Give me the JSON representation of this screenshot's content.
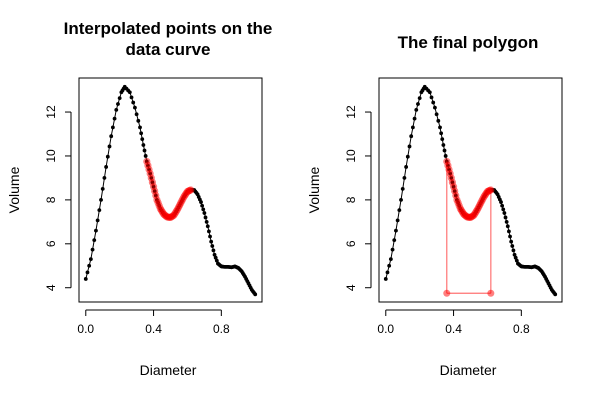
{
  "chart_data": [
    {
      "type": "scatter",
      "title_lines": [
        "Interpolated points on the",
        "data curve"
      ],
      "xlabel": "Diameter",
      "ylabel": "Volume",
      "xlim": [
        -0.04,
        1.04
      ],
      "ylim": [
        3.35,
        13.55
      ],
      "xticks": [
        {
          "v": 0.0,
          "label": "0.0"
        },
        {
          "v": 0.4,
          "label": "0.4"
        },
        {
          "v": 0.8,
          "label": "0.8"
        }
      ],
      "yticks": [
        {
          "v": 4,
          "label": "4"
        },
        {
          "v": 6,
          "label": "6"
        },
        {
          "v": 8,
          "label": "8"
        },
        {
          "v": 10,
          "label": "10"
        },
        {
          "v": 12,
          "label": "12"
        }
      ],
      "curve_color": "#000000",
      "highlight_color": "#ff0000",
      "highlight_range": [
        0.36,
        0.62
      ],
      "show_polygon": false,
      "curve": [
        [
          0.0,
          4.4
        ],
        [
          0.03,
          5.3
        ],
        [
          0.06,
          6.6
        ],
        [
          0.09,
          8.0
        ],
        [
          0.12,
          9.5
        ],
        [
          0.15,
          10.9
        ],
        [
          0.18,
          12.1
        ],
        [
          0.21,
          12.9
        ],
        [
          0.23,
          13.15
        ],
        [
          0.26,
          12.9
        ],
        [
          0.29,
          12.2
        ],
        [
          0.32,
          11.3
        ],
        [
          0.34,
          10.5
        ],
        [
          0.36,
          9.75
        ],
        [
          0.38,
          9.2
        ],
        [
          0.4,
          8.6
        ],
        [
          0.42,
          8.0
        ],
        [
          0.44,
          7.6
        ],
        [
          0.46,
          7.35
        ],
        [
          0.48,
          7.22
        ],
        [
          0.5,
          7.2
        ],
        [
          0.52,
          7.3
        ],
        [
          0.54,
          7.55
        ],
        [
          0.56,
          7.85
        ],
        [
          0.58,
          8.15
        ],
        [
          0.6,
          8.38
        ],
        [
          0.62,
          8.45
        ],
        [
          0.64,
          8.45
        ],
        [
          0.66,
          8.25
        ],
        [
          0.68,
          7.9
        ],
        [
          0.7,
          7.4
        ],
        [
          0.72,
          6.8
        ],
        [
          0.74,
          6.1
        ],
        [
          0.76,
          5.5
        ],
        [
          0.78,
          5.1
        ],
        [
          0.8,
          4.97
        ],
        [
          0.82,
          4.95
        ],
        [
          0.84,
          4.95
        ],
        [
          0.86,
          4.93
        ],
        [
          0.88,
          4.97
        ],
        [
          0.9,
          4.9
        ],
        [
          0.92,
          4.75
        ],
        [
          0.94,
          4.5
        ],
        [
          0.96,
          4.2
        ],
        [
          0.98,
          3.9
        ],
        [
          1.0,
          3.7
        ]
      ]
    },
    {
      "type": "scatter",
      "title_lines": [
        "The final polygon"
      ],
      "xlabel": "Diameter",
      "ylabel": "Volume",
      "xlim": [
        -0.04,
        1.04
      ],
      "ylim": [
        3.35,
        13.55
      ],
      "xticks": [
        {
          "v": 0.0,
          "label": "0.0"
        },
        {
          "v": 0.4,
          "label": "0.4"
        },
        {
          "v": 0.8,
          "label": "0.8"
        }
      ],
      "yticks": [
        {
          "v": 4,
          "label": "4"
        },
        {
          "v": 6,
          "label": "6"
        },
        {
          "v": 8,
          "label": "8"
        },
        {
          "v": 10,
          "label": "10"
        },
        {
          "v": 12,
          "label": "12"
        }
      ],
      "curve_color": "#000000",
      "highlight_color": "#ff0000",
      "highlight_range": [
        0.36,
        0.62
      ],
      "show_polygon": true,
      "polygon_base": 3.75,
      "curve": [
        [
          0.0,
          4.4
        ],
        [
          0.03,
          5.3
        ],
        [
          0.06,
          6.6
        ],
        [
          0.09,
          8.0
        ],
        [
          0.12,
          9.5
        ],
        [
          0.15,
          10.9
        ],
        [
          0.18,
          12.1
        ],
        [
          0.21,
          12.9
        ],
        [
          0.23,
          13.15
        ],
        [
          0.26,
          12.9
        ],
        [
          0.29,
          12.2
        ],
        [
          0.32,
          11.3
        ],
        [
          0.34,
          10.5
        ],
        [
          0.36,
          9.75
        ],
        [
          0.38,
          9.2
        ],
        [
          0.4,
          8.6
        ],
        [
          0.42,
          8.0
        ],
        [
          0.44,
          7.6
        ],
        [
          0.46,
          7.35
        ],
        [
          0.48,
          7.22
        ],
        [
          0.5,
          7.2
        ],
        [
          0.52,
          7.3
        ],
        [
          0.54,
          7.55
        ],
        [
          0.56,
          7.85
        ],
        [
          0.58,
          8.15
        ],
        [
          0.6,
          8.38
        ],
        [
          0.62,
          8.45
        ],
        [
          0.64,
          8.45
        ],
        [
          0.66,
          8.25
        ],
        [
          0.68,
          7.9
        ],
        [
          0.7,
          7.4
        ],
        [
          0.72,
          6.8
        ],
        [
          0.74,
          6.1
        ],
        [
          0.76,
          5.5
        ],
        [
          0.78,
          5.1
        ],
        [
          0.8,
          4.97
        ],
        [
          0.82,
          4.95
        ],
        [
          0.84,
          4.95
        ],
        [
          0.86,
          4.93
        ],
        [
          0.88,
          4.97
        ],
        [
          0.9,
          4.9
        ],
        [
          0.92,
          4.75
        ],
        [
          0.94,
          4.5
        ],
        [
          0.96,
          4.2
        ],
        [
          0.98,
          3.9
        ],
        [
          1.0,
          3.7
        ]
      ]
    }
  ]
}
